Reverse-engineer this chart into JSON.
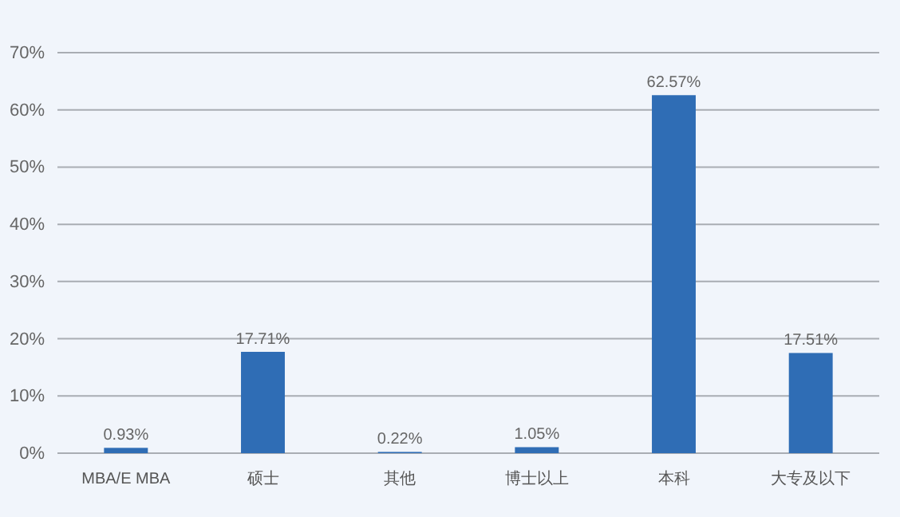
{
  "chart_data": {
    "type": "bar",
    "categories": [
      "MBA/E MBA",
      "硕士",
      "其他",
      "博士以上",
      "本科",
      "大专及以下"
    ],
    "values": [
      0.93,
      17.71,
      0.22,
      1.05,
      62.57,
      17.51
    ],
    "value_labels": [
      "0.93%",
      "17.71%",
      "0.22%",
      "1.05%",
      "62.57%",
      "17.51%"
    ],
    "color": "#2f6db5",
    "ylim": [
      0,
      70
    ],
    "yticks": [
      {
        "value": 0,
        "label": "0%"
      },
      {
        "value": 10,
        "label": "10%"
      },
      {
        "value": 20,
        "label": "20%"
      },
      {
        "value": 30,
        "label": "30%"
      },
      {
        "value": 40,
        "label": "40%"
      },
      {
        "value": 50,
        "label": "50%"
      },
      {
        "value": 60,
        "label": "60%"
      },
      {
        "value": 70,
        "label": "70%"
      }
    ],
    "grid": "y"
  }
}
